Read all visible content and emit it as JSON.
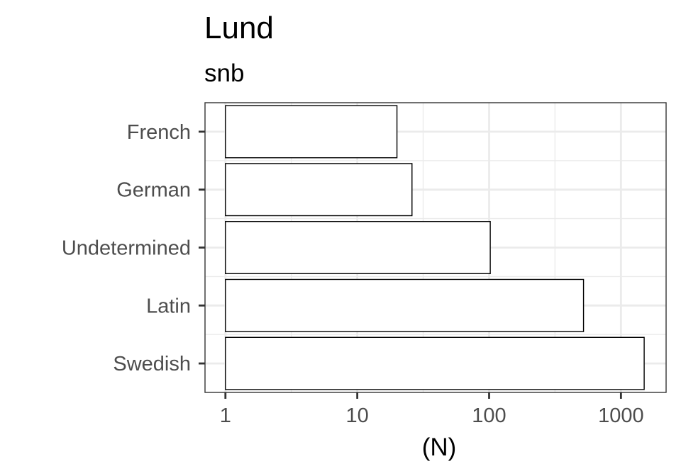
{
  "chart_data": {
    "type": "bar",
    "orientation": "horizontal",
    "title": "Lund",
    "subtitle": "snb",
    "xlabel": "(N)",
    "ylabel": "",
    "x_scale": "log10",
    "xlim": [
      0.7,
      2200
    ],
    "x_ticks": [
      1,
      10,
      100,
      1000
    ],
    "x_tick_labels": [
      "1",
      "10",
      "100",
      "1000"
    ],
    "x_minor_ticks": [
      3.16,
      31.6,
      316
    ],
    "categories": [
      "Swedish",
      "Latin",
      "Undetermined",
      "German",
      "French"
    ],
    "values": [
      1500,
      520,
      102,
      26,
      20
    ],
    "bar_fill": "#ffffff",
    "bar_outline": "#000000",
    "grid": true,
    "legend": "none"
  }
}
